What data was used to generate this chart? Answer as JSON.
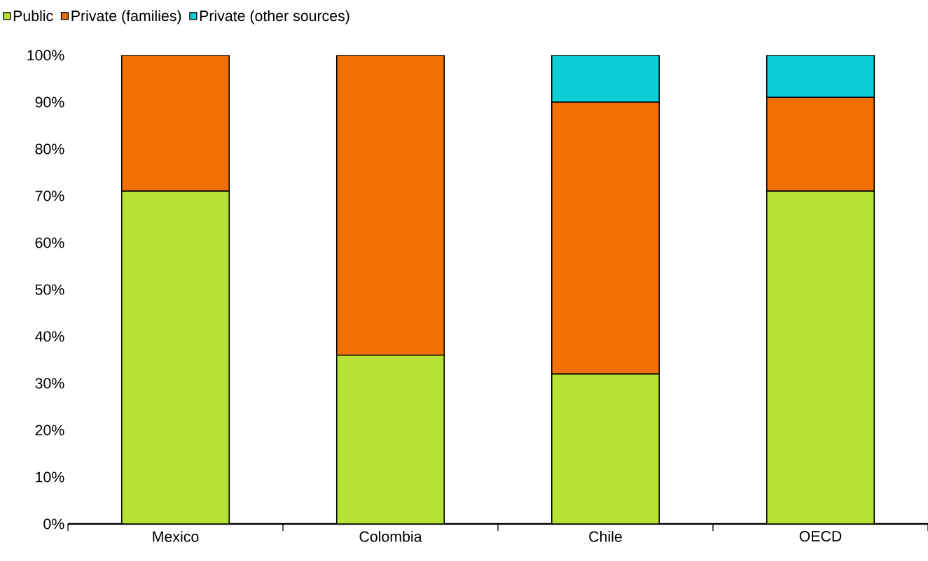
{
  "chart_data": {
    "type": "bar",
    "stacked": true,
    "categories": [
      "Mexico",
      "Colombia",
      "Chile",
      "OECD"
    ],
    "series": [
      {
        "name": "Public",
        "color": "#b5e233",
        "values": [
          71,
          36,
          32,
          71
        ]
      },
      {
        "name": "Private (families)",
        "color": "#f07003",
        "values": [
          29,
          64,
          58,
          20
        ]
      },
      {
        "name": "Private (other sources)",
        "color": "#0bcfd4",
        "values": [
          0,
          0,
          10,
          9
        ]
      }
    ],
    "ylim": [
      0,
      100
    ],
    "yticks": [
      {
        "value": 0,
        "label": "0%"
      },
      {
        "value": 10,
        "label": "10%"
      },
      {
        "value": 20,
        "label": "20%"
      },
      {
        "value": 30,
        "label": "30%"
      },
      {
        "value": 40,
        "label": "40%"
      },
      {
        "value": 50,
        "label": "50%"
      },
      {
        "value": 60,
        "label": "60%"
      },
      {
        "value": 70,
        "label": "70%"
      },
      {
        "value": 80,
        "label": "80%"
      },
      {
        "value": 90,
        "label": "90%"
      },
      {
        "value": 100,
        "label": "100%"
      }
    ],
    "legend": "top left"
  }
}
